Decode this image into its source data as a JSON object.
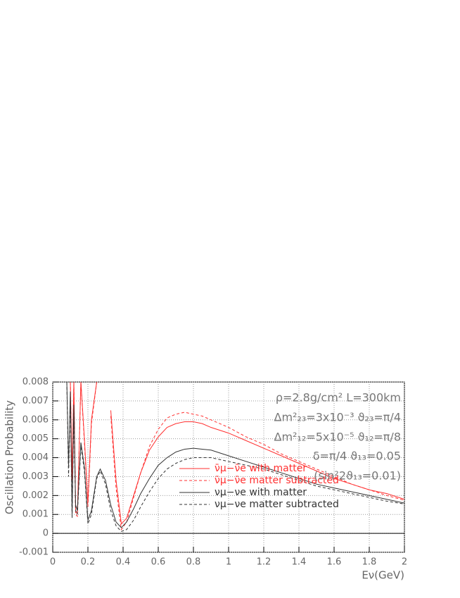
{
  "chart_data": {
    "type": "line",
    "ylabel": "Oscillation Probability",
    "xlabel": "Eν(GeV)",
    "annotations": [
      "ρ=2.8g/cm²  L=300km",
      "Δm²₂₃=3x10⁻³ ϑ₂₃=π/4",
      "Δm²₁₂=5x10⁻⁵ ϑ₁₂=π/8",
      "δ=π/4            ϑ₁₃=0.05",
      "(sin²2ϑ₁₃=0.01)"
    ],
    "x": [
      0.08,
      0.09,
      0.1,
      0.11,
      0.12,
      0.13,
      0.14,
      0.16,
      0.18,
      0.2,
      0.22,
      0.25,
      0.27,
      0.3,
      0.33,
      0.36,
      0.39,
      0.42,
      0.46,
      0.5,
      0.55,
      0.6,
      0.65,
      0.7,
      0.75,
      0.8,
      0.85,
      0.9,
      1.0,
      1.1,
      1.2,
      1.3,
      1.4,
      1.5,
      1.6,
      1.7,
      1.8,
      1.9,
      2.0
    ],
    "series": [
      {
        "name": "ν̄μ−ν̄e with matter",
        "color": "#ff3030",
        "style": "solid",
        "values": [
          null,
          null,
          0.008,
          0.003,
          0.008,
          0.0012,
          0.001,
          0.008,
          0.005,
          0.0016,
          0.006,
          0.008,
          null,
          null,
          0.0065,
          0.0028,
          0.0005,
          0.0008,
          0.002,
          0.0032,
          0.0044,
          0.0051,
          0.0056,
          0.0058,
          0.0059,
          0.0059,
          0.0058,
          0.0056,
          0.0053,
          0.0049,
          0.0045,
          0.0041,
          0.0037,
          0.0033,
          0.0029,
          0.0026,
          0.0023,
          0.0021,
          0.0018
        ]
      },
      {
        "name": "ν̄μ−ν̄e matter subtracted",
        "color": "#ff3030",
        "style": "dashed",
        "values": [
          null,
          null,
          0.008,
          0.0028,
          0.008,
          0.001,
          0.0009,
          0.008,
          0.0048,
          0.0014,
          0.0058,
          0.008,
          null,
          null,
          0.0062,
          0.0024,
          0.0002,
          0.0006,
          0.0019,
          0.0032,
          0.0046,
          0.0055,
          0.0061,
          0.0063,
          0.0064,
          0.0063,
          0.0062,
          0.006,
          0.0056,
          0.0051,
          0.0047,
          0.0042,
          0.0038,
          0.0034,
          0.003,
          0.0026,
          0.0023,
          0.002,
          0.00175
        ]
      },
      {
        "name": "νμ−νe with matter",
        "color": "#333333",
        "style": "solid",
        "values": [
          0.008,
          0.0035,
          0.0075,
          0.001,
          0.0068,
          0.0015,
          0.0012,
          0.0048,
          0.0035,
          0.0007,
          0.0012,
          0.003,
          0.0034,
          0.0028,
          0.0015,
          0.0006,
          0.0003,
          0.0006,
          0.0013,
          0.0021,
          0.0029,
          0.0036,
          0.004,
          0.0043,
          0.00445,
          0.0045,
          0.00445,
          0.0044,
          0.0041,
          0.0038,
          0.0035,
          0.0032,
          0.0029,
          0.0026,
          0.0024,
          0.0022,
          0.002,
          0.0018,
          0.0016
        ]
      },
      {
        "name": "νμ−νe matter subtracted",
        "color": "#333333",
        "style": "dashed",
        "values": [
          0.008,
          0.003,
          0.0072,
          0.0008,
          0.0065,
          0.0012,
          0.001,
          0.0046,
          0.0033,
          0.0005,
          0.001,
          0.0029,
          0.0033,
          0.0026,
          0.0012,
          0.0004,
          0.0001,
          0.0002,
          0.0007,
          0.0014,
          0.0022,
          0.0029,
          0.0034,
          0.0037,
          0.0039,
          0.004,
          0.004,
          0.004,
          0.0038,
          0.0036,
          0.0034,
          0.0031,
          0.0028,
          0.0025,
          0.0023,
          0.0021,
          0.0019,
          0.0017,
          0.00155
        ]
      }
    ],
    "xlim": [
      0,
      2
    ],
    "ylim": [
      -0.001,
      0.008
    ],
    "xticks": [
      0,
      0.2,
      0.4,
      0.6,
      0.8,
      1,
      1.2,
      1.4,
      1.6,
      1.8,
      2
    ],
    "yticks": [
      -0.001,
      0,
      0.001,
      0.002,
      0.003,
      0.004,
      0.005,
      0.006,
      0.007,
      0.008
    ],
    "grid": true
  }
}
